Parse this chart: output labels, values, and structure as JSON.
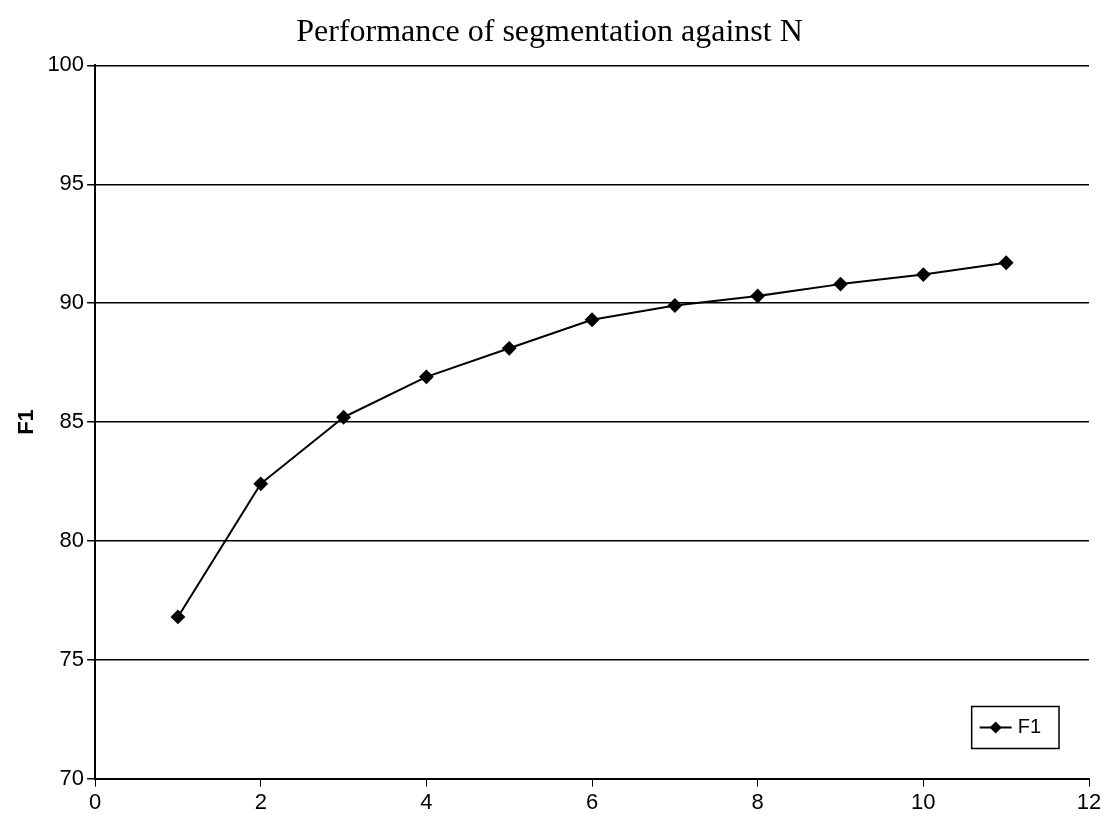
{
  "chart_data": {
    "type": "line",
    "title": "Performance of segmentation against N",
    "ylabel": "F1",
    "x": [
      1,
      2,
      3,
      4,
      5,
      6,
      7,
      8,
      9,
      10,
      11
    ],
    "series": [
      {
        "name": "F1",
        "color": "#000000",
        "values": [
          76.8,
          82.4,
          85.2,
          86.9,
          88.1,
          89.3,
          89.9,
          90.3,
          90.8,
          91.2,
          91.7
        ]
      }
    ],
    "xlim": [
      0,
      12
    ],
    "xticks": [
      0,
      2,
      4,
      6,
      8,
      10,
      12
    ],
    "ylim": [
      70,
      100
    ],
    "yticks": [
      70,
      75,
      80,
      85,
      90,
      95,
      100
    ],
    "grid": "y",
    "legend": "bottom right",
    "marker": "diamond",
    "line_style": "solid"
  }
}
